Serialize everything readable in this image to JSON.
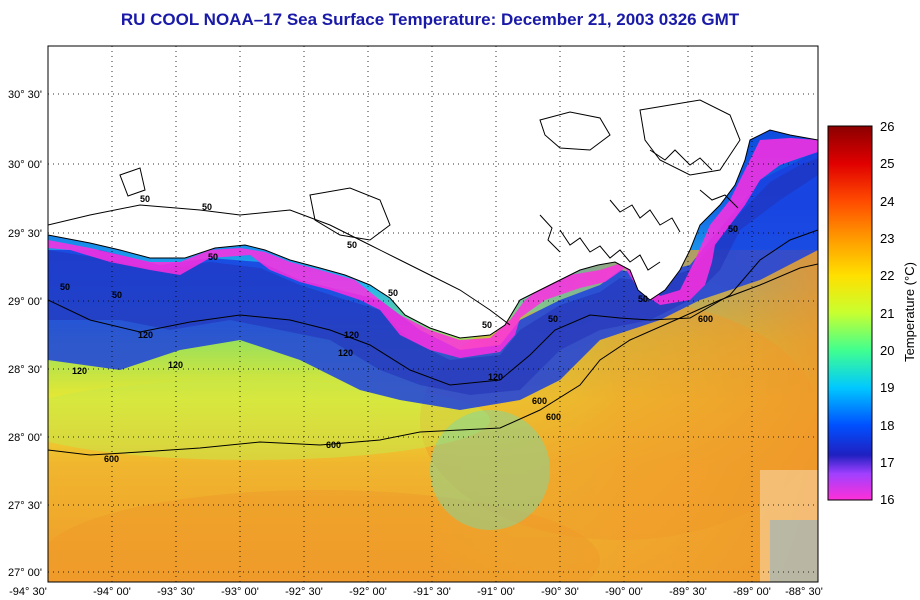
{
  "title": "RU COOL  NOAA–17  Sea Surface Temperature:  December 21, 2003 0326 GMT",
  "axes": {
    "x_ticks": [
      "-94° 30'",
      "-94° 00'",
      "-93° 30'",
      "-93° 00'",
      "-92° 30'",
      "-92° 00'",
      "-91° 30'",
      "-91° 00'",
      "-90° 30'",
      "-90° 00'",
      "-89° 30'",
      "-89° 00'",
      "-88° 30'"
    ],
    "y_ticks": [
      "30° 30'",
      "30° 00'",
      "29° 30'",
      "29° 00'",
      "28° 30'",
      "28° 00'",
      "27° 30'",
      "27° 00'"
    ]
  },
  "colorbar": {
    "title": "Temperature (°C)",
    "ticks": [
      "26",
      "25",
      "24",
      "23",
      "22",
      "21",
      "20",
      "19",
      "18",
      "17",
      "16"
    ],
    "min": 16,
    "max": 26
  },
  "contour_labels": [
    {
      "text": "50",
      "id": "c50a"
    },
    {
      "text": "50",
      "id": "c50b"
    },
    {
      "text": "50",
      "id": "c50c"
    },
    {
      "text": "50",
      "id": "c50d"
    },
    {
      "text": "50",
      "id": "c50e"
    },
    {
      "text": "50",
      "id": "c50f"
    },
    {
      "text": "50",
      "id": "c50g"
    },
    {
      "text": "50",
      "id": "c50h"
    },
    {
      "text": "50",
      "id": "c50i"
    },
    {
      "text": "50",
      "id": "c50j"
    },
    {
      "text": "50",
      "id": "c50k"
    },
    {
      "text": "120",
      "id": "c120a"
    },
    {
      "text": "120",
      "id": "c120b"
    },
    {
      "text": "120",
      "id": "c120c"
    },
    {
      "text": "120",
      "id": "c120d"
    },
    {
      "text": "120",
      "id": "c120e"
    },
    {
      "text": "120",
      "id": "c120f"
    },
    {
      "text": "600",
      "id": "c600a"
    },
    {
      "text": "600",
      "id": "c600b"
    },
    {
      "text": "600",
      "id": "c600c"
    },
    {
      "text": "600",
      "id": "c600d"
    },
    {
      "text": "600",
      "id": "c600e"
    }
  ],
  "colors": {
    "title": "#1a1aa8",
    "land": "#ffffff",
    "coast": "#000000"
  }
}
